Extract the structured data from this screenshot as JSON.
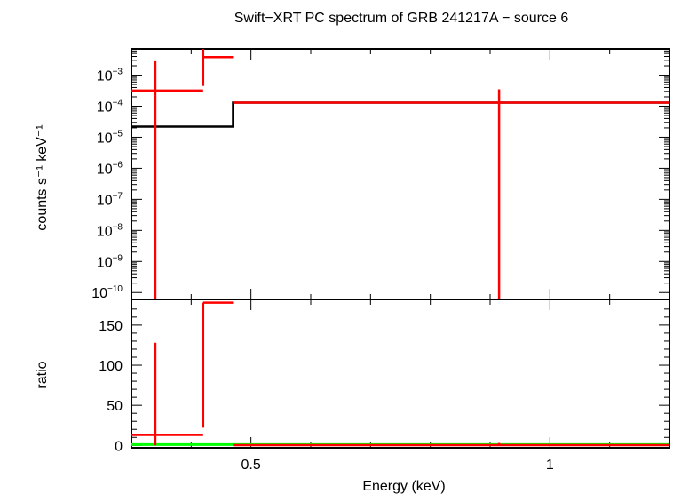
{
  "chart_data": [
    {
      "type": "line",
      "panel": "spectrum",
      "title": "Swift−XRT PC spectrum of GRB 241217A − source 6",
      "ylabel": "counts s⁻¹ keV⁻¹",
      "y_scale": "log",
      "xlim": [
        0.3,
        1.2
      ],
      "ylim": [
        6e-11,
        0.007
      ],
      "y_ticks": [
        {
          "exp": "−3"
        },
        {
          "exp": "−4"
        },
        {
          "exp": "−5"
        },
        {
          "exp": "−6"
        },
        {
          "exp": "−7"
        },
        {
          "exp": "−8"
        },
        {
          "exp": "−9"
        },
        {
          "exp": "−10"
        }
      ],
      "data_points": [
        {
          "x": 0.34,
          "xlo": 0.3,
          "xhi": 0.42,
          "y": 0.00032,
          "ylo": 6e-11,
          "yhi": 0.0028
        },
        {
          "x": 0.42,
          "xlo": 0.42,
          "xhi": 0.47,
          "y": 0.0038,
          "ylo": 0.00045,
          "yhi": 0.007
        },
        {
          "x": 0.915,
          "xlo": 0.47,
          "xhi": 1.2,
          "y": 0.00013,
          "ylo": 6e-11,
          "yhi": 0.00035
        }
      ],
      "model": [
        {
          "xlo": 0.3,
          "xhi": 0.47,
          "y": 2.2e-05
        },
        {
          "xlo": 0.47,
          "xhi": 1.2,
          "y": 0.00013
        }
      ],
      "colors": {
        "data": "#ff0000",
        "model": "#000000"
      }
    },
    {
      "type": "line",
      "panel": "ratio",
      "xlabel": "Energy (keV)",
      "ylabel": "ratio",
      "xlim": [
        0.3,
        1.2
      ],
      "ylim": [
        -3,
        182
      ],
      "x_ticks": [
        {
          "value": 0.5,
          "label": "0.5"
        },
        {
          "value": 1,
          "label": "1"
        }
      ],
      "y_ticks": [
        {
          "value": 0,
          "label": "0"
        },
        {
          "value": 50,
          "label": "50"
        },
        {
          "value": 100,
          "label": "100"
        },
        {
          "value": 150,
          "label": "150"
        }
      ],
      "data_points": [
        {
          "x": 0.34,
          "xlo": 0.3,
          "xhi": 0.42,
          "y": 13,
          "ylo": 0,
          "yhi": 128
        },
        {
          "x": 0.42,
          "xlo": 0.42,
          "xhi": 0.47,
          "y": 178,
          "ylo": 22,
          "yhi": 178
        },
        {
          "x": 0.915,
          "xlo": 0.47,
          "xhi": 1.2,
          "y": 0.3,
          "ylo": 0,
          "yhi": 3
        }
      ],
      "reference_line": 1,
      "colors": {
        "data": "#ff0000",
        "reference": "#00ff00"
      }
    }
  ]
}
